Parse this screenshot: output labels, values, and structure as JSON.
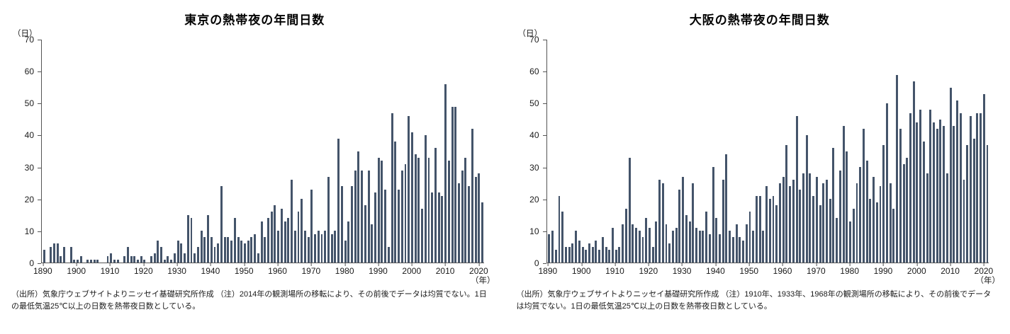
{
  "charts": [
    {
      "title": "東京の熱帯夜の年間日数",
      "y_unit": "（日）",
      "x_unit": "（年）",
      "note": "（出所）気象庁ウェブサイトよりニッセイ基礎研究所作成 （注）2014年の観測場所の移転により、その前後でデータは均質でない。1日の最低気温25℃以上の日数を熱帯夜日数としている。"
    },
    {
      "title": "大阪の熱帯夜の年間日数",
      "y_unit": "（日）",
      "x_unit": "（年）",
      "note": "（出所）気象庁ウェブサイトよりニッセイ基礎研究所作成 （注）1910年、1933年、1968年の観測場所の移転により、その前後でデータは均質でない。1日の最低気温25℃以上の日数を熱帯夜日数としている。"
    }
  ],
  "chart_data": [
    {
      "type": "bar",
      "title": "東京の熱帯夜の年間日数",
      "xlabel": "（年）",
      "ylabel": "（日）",
      "x_start": 1890,
      "x_end": 2021,
      "ylim": [
        0,
        70
      ],
      "yticks": [
        0,
        10,
        20,
        30,
        40,
        50,
        60,
        70
      ],
      "xticks": [
        1890,
        1900,
        1910,
        1920,
        1930,
        1940,
        1950,
        1960,
        1970,
        1980,
        1990,
        2000,
        2010,
        2020
      ],
      "bar_color": "#44546a",
      "grid": false,
      "legend": "none",
      "values": [
        4,
        0,
        5,
        6,
        6,
        2,
        5,
        0,
        5,
        1,
        1,
        2,
        0,
        1,
        1,
        1,
        1,
        0,
        0,
        2,
        3,
        1,
        1,
        0,
        2,
        5,
        2,
        2,
        1,
        2,
        1,
        0,
        2,
        3,
        7,
        5,
        1,
        2,
        1,
        3,
        7,
        6,
        3,
        15,
        14,
        3,
        5,
        10,
        8,
        15,
        8,
        5,
        6,
        24,
        8,
        8,
        7,
        14,
        8,
        7,
        6,
        7,
        8,
        9,
        3,
        13,
        8,
        14,
        16,
        18,
        10,
        17,
        13,
        14,
        26,
        10,
        16,
        20,
        10,
        8,
        23,
        9,
        10,
        9,
        10,
        27,
        9,
        10,
        39,
        24,
        7,
        13,
        24,
        29,
        35,
        29,
        18,
        29,
        12,
        22,
        33,
        32,
        23,
        5,
        47,
        38,
        23,
        29,
        31,
        46,
        41,
        34,
        33,
        17,
        40,
        33,
        22,
        36,
        22,
        21,
        56,
        32,
        49,
        49,
        25,
        29,
        33,
        24,
        42,
        27,
        28,
        19
      ]
    },
    {
      "type": "bar",
      "title": "大阪の熱帯夜の年間日数",
      "xlabel": "（年）",
      "ylabel": "（日）",
      "x_start": 1890,
      "x_end": 2021,
      "ylim": [
        0,
        70
      ],
      "yticks": [
        0,
        10,
        20,
        30,
        40,
        50,
        60,
        70
      ],
      "xticks": [
        1890,
        1900,
        1910,
        1920,
        1930,
        1940,
        1950,
        1960,
        1970,
        1980,
        1990,
        2000,
        2010,
        2020
      ],
      "bar_color": "#44546a",
      "grid": false,
      "legend": "none",
      "values": [
        9,
        10,
        4,
        21,
        16,
        5,
        5,
        6,
        10,
        7,
        5,
        4,
        6,
        5,
        7,
        4,
        8,
        5,
        4,
        11,
        4,
        5,
        12,
        17,
        33,
        12,
        11,
        10,
        8,
        14,
        11,
        5,
        13,
        26,
        25,
        12,
        6,
        10,
        11,
        23,
        27,
        15,
        13,
        25,
        11,
        10,
        10,
        16,
        9,
        30,
        14,
        9,
        26,
        34,
        10,
        8,
        12,
        8,
        7,
        12,
        16,
        10,
        21,
        21,
        10,
        24,
        20,
        21,
        18,
        25,
        27,
        37,
        24,
        26,
        46,
        23,
        28,
        40,
        28,
        21,
        27,
        18,
        25,
        26,
        20,
        36,
        14,
        29,
        43,
        35,
        13,
        17,
        25,
        30,
        42,
        32,
        20,
        27,
        19,
        24,
        37,
        50,
        25,
        17,
        59,
        42,
        31,
        33,
        47,
        57,
        44,
        48,
        38,
        28,
        48,
        44,
        42,
        45,
        43,
        28,
        55,
        43,
        51,
        47,
        26,
        37,
        46,
        39,
        47,
        47,
        53,
        37
      ]
    }
  ]
}
